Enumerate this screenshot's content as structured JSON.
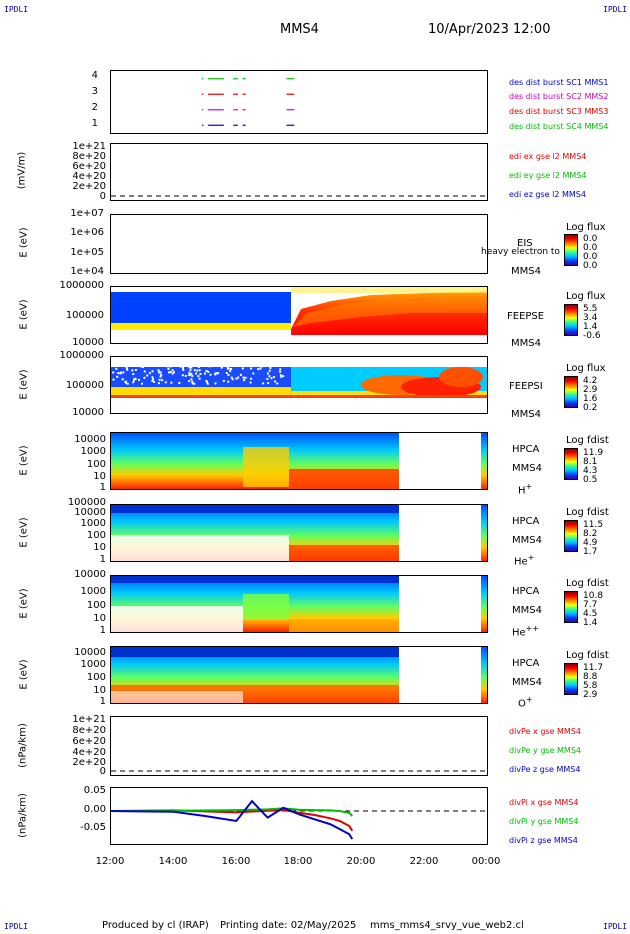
{
  "corners": {
    "top_left": "IPDLI",
    "top_right": "IPDLI",
    "bottom_left": "IPDLI",
    "bottom_right": "IPDLI"
  },
  "header": {
    "spacecraft": "MMS4",
    "datetime": "10/Apr/2023 12:00"
  },
  "footer": {
    "produced_by": "Produced by cl (IRAP)",
    "printing_date": "Printing date: 02/May/2025",
    "script": "mms_mms4_srvy_vue_web2.cl"
  },
  "colors": {
    "mms1": "#0000cc",
    "mms2": "#cc00cc",
    "mms3": "#dd0000",
    "mms4": "#00bb00",
    "x_comp": "#dd0000",
    "y_comp": "#00bb00",
    "z_comp": "#0000cc"
  },
  "chart_data": [
    {
      "type": "line",
      "panel": "burst",
      "yticks": [
        "4",
        "3",
        "2",
        "1"
      ],
      "legend": [
        "des dist burst SC1 MMS1",
        "des dist burst SC2 MMS2",
        "des dist burst SC3 MMS3",
        "des dist burst SC4 MMS4"
      ],
      "series": [
        {
          "level": 4,
          "intervals": [
            [
              14.9,
              14.92
            ],
            [
              15.1,
              15.6
            ],
            [
              15.9,
              16.05
            ],
            [
              16.2,
              16.3
            ],
            [
              17.6,
              17.85
            ]
          ]
        },
        {
          "level": 3,
          "intervals": [
            [
              14.9,
              14.92
            ],
            [
              15.1,
              15.6
            ],
            [
              15.9,
              16.05
            ],
            [
              16.2,
              16.3
            ],
            [
              17.6,
              17.85
            ]
          ]
        },
        {
          "level": 2,
          "intervals": [
            [
              14.9,
              14.92
            ],
            [
              15.1,
              15.6
            ],
            [
              15.9,
              16.05
            ],
            [
              16.2,
              16.3
            ],
            [
              17.6,
              17.85
            ]
          ]
        },
        {
          "level": 1,
          "intervals": [
            [
              14.9,
              14.92
            ],
            [
              15.1,
              15.6
            ],
            [
              15.9,
              16.05
            ],
            [
              16.2,
              16.3
            ],
            [
              17.6,
              17.85
            ]
          ]
        }
      ]
    },
    {
      "type": "line",
      "panel": "edi",
      "ylabel": "(mV/m)",
      "yticks": [
        "1e+21",
        "8e+20",
        "6e+20",
        "4e+20",
        "2e+20",
        "0"
      ],
      "legend": [
        "edi ex gse l2 MMS4",
        "edi ey gse l2 MMS4",
        "edi ez gse l2 MMS4"
      ]
    },
    {
      "type": "heatmap",
      "panel": "eis",
      "ylabel": "E (eV)",
      "yticks": [
        "1e+07",
        "1e+06",
        "1e+05",
        "1e+04"
      ],
      "instrument": "EIS",
      "overlay_text": "heavy electron to",
      "spacecraft": "MMS4",
      "colorbar_title": "Log flux",
      "colorbar_values": [
        "0.0",
        "0.0",
        "0.0",
        "0.0"
      ]
    },
    {
      "type": "heatmap",
      "panel": "feepse",
      "ylabel": "E (eV)",
      "yticks": [
        "1000000",
        "100000",
        "10000"
      ],
      "instrument": "FEEPSE",
      "spacecraft": "MMS4",
      "colorbar_title": "Log flux",
      "colorbar_values": [
        "5.5",
        "3.4",
        "1.4",
        "-0.6"
      ]
    },
    {
      "type": "heatmap",
      "panel": "feepsi",
      "ylabel": "E (eV)",
      "yticks": [
        "1000000",
        "100000",
        "10000"
      ],
      "instrument": "FEEPSI",
      "spacecraft": "MMS4",
      "colorbar_title": "Log flux",
      "colorbar_values": [
        "4.2",
        "2.9",
        "1.6",
        "0.2"
      ]
    },
    {
      "type": "heatmap",
      "panel": "hpca_h",
      "ylabel": "E (eV)",
      "yticks": [
        "10000",
        "1000",
        "100",
        "10",
        "1"
      ],
      "instrument": "HPCA",
      "spacecraft": "MMS4",
      "species": "H",
      "species_charge": "+",
      "colorbar_title": "Log fdist",
      "colorbar_values": [
        "11.9",
        "8.1",
        "4.3",
        "0.5"
      ]
    },
    {
      "type": "heatmap",
      "panel": "hpca_he",
      "ylabel": "E (eV)",
      "yticks": [
        "100000",
        "10000",
        "1000",
        "100",
        "10",
        "1"
      ],
      "instrument": "HPCA",
      "spacecraft": "MMS4",
      "species": "He",
      "species_charge": "+",
      "colorbar_title": "Log fdist",
      "colorbar_values": [
        "11.5",
        "8.2",
        "4.9",
        "1.7"
      ]
    },
    {
      "type": "heatmap",
      "panel": "hpca_hepp",
      "ylabel": "E (eV)",
      "yticks": [
        "10000",
        "1000",
        "100",
        "10",
        "1"
      ],
      "instrument": "HPCA",
      "spacecraft": "MMS4",
      "species": "He",
      "species_charge": "++",
      "colorbar_title": "Log fdist",
      "colorbar_values": [
        "10.8",
        "7.7",
        "4.5",
        "1.4"
      ]
    },
    {
      "type": "heatmap",
      "panel": "hpca_o",
      "ylabel": "E (eV)",
      "yticks": [
        "10000",
        "1000",
        "100",
        "10",
        "1"
      ],
      "instrument": "HPCA",
      "spacecraft": "MMS4",
      "species": "O",
      "species_charge": "+",
      "colorbar_title": "Log fdist",
      "colorbar_values": [
        "11.7",
        "8.8",
        "5.8",
        "2.9"
      ]
    },
    {
      "type": "line",
      "panel": "divpe",
      "ylabel": "(nPa/km)",
      "yticks": [
        "1e+21",
        "8e+20",
        "6e+20",
        "4e+20",
        "2e+20",
        "0"
      ],
      "legend": [
        "divPe x gse MMS4",
        "divPe y gse MMS4",
        "divPe z gse MMS4"
      ]
    },
    {
      "type": "line",
      "panel": "divpi",
      "ylabel": "(nPa/km)",
      "yticks": [
        "0.05",
        "0.00",
        "-0.05"
      ],
      "ylim": [
        -0.1,
        0.07
      ],
      "legend": [
        "divPi x gse MMS4",
        "divPi y gse MMS4",
        "divPi z gse MMS4"
      ],
      "series": [
        {
          "name": "divPi x gse MMS4",
          "x": [
            12,
            14,
            16,
            17,
            17.5,
            18,
            18.5,
            19,
            19.3,
            19.6,
            19.7
          ],
          "y": [
            0,
            0.002,
            -0.004,
            0.001,
            0.003,
            -0.005,
            -0.012,
            -0.022,
            -0.03,
            -0.045,
            -0.06
          ]
        },
        {
          "name": "divPi y gse MMS4",
          "x": [
            12,
            14,
            16,
            17,
            17.5,
            18,
            18.5,
            19,
            19.3,
            19.6,
            19.7
          ],
          "y": [
            0,
            0.001,
            0.003,
            0.005,
            0.008,
            0.004,
            0.003,
            0.002,
            0.0,
            -0.005,
            -0.015
          ]
        },
        {
          "name": "divPi z gse MMS4",
          "x": [
            12,
            14,
            15,
            16,
            16.5,
            17,
            17.5,
            18,
            18.5,
            19,
            19.3,
            19.6,
            19.7
          ],
          "y": [
            0,
            -0.002,
            -0.015,
            -0.03,
            0.03,
            -0.02,
            0.01,
            -0.01,
            -0.025,
            -0.04,
            -0.055,
            -0.07,
            -0.085
          ]
        }
      ]
    }
  ],
  "xaxis": {
    "ticks": [
      "12:00",
      "14:00",
      "16:00",
      "18:00",
      "20:00",
      "22:00",
      "00:00"
    ]
  }
}
